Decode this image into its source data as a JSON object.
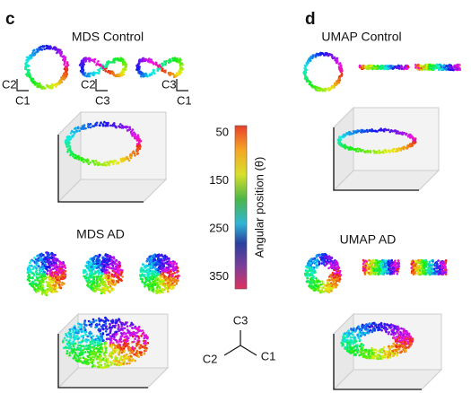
{
  "panels": [
    {
      "letter": "c",
      "sections": [
        {
          "title": "MDS Control",
          "axis_labels": [
            [
              "C2",
              "C1"
            ],
            [
              "C2",
              "C3"
            ],
            [
              "C3",
              "C1"
            ]
          ]
        },
        {
          "title": "MDS AD"
        }
      ]
    },
    {
      "letter": "d",
      "sections": [
        {
          "title": "UMAP Control"
        },
        {
          "title": "UMAP AD"
        }
      ]
    }
  ],
  "colorbar": {
    "label": "Angular position (θ)",
    "ticks": [
      50,
      150,
      250,
      350
    ]
  },
  "axes_key": {
    "top": "C3",
    "left": "C2",
    "right": "C1"
  }
}
